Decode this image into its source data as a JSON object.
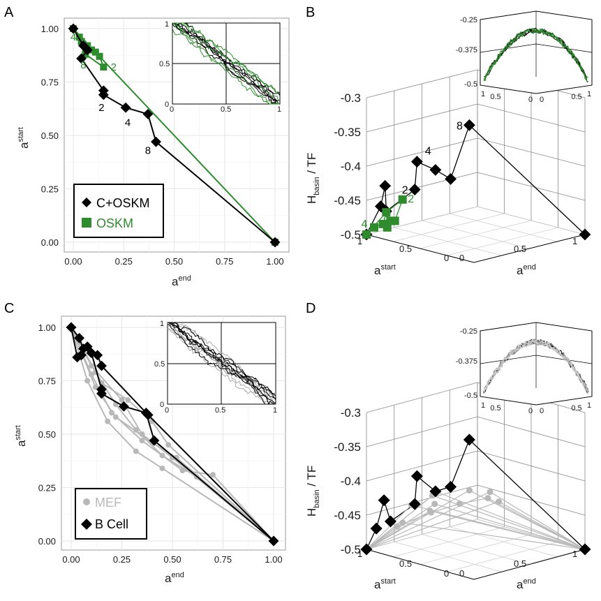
{
  "panels": {
    "A": {
      "label": "A"
    },
    "B": {
      "label": "B"
    },
    "C": {
      "label": "C"
    },
    "D": {
      "label": "D"
    }
  },
  "colors": {
    "black_series": "#000000",
    "green_series": "#2e8b2e",
    "gray_series": "#b8b8b8",
    "grid": "#e6e6e6"
  },
  "chart_data": [
    {
      "panel": "A",
      "type": "line",
      "xlabel": "a",
      "xlabel_sup": "end",
      "ylabel": "a",
      "ylabel_sup": "start",
      "xlim": [
        0,
        1
      ],
      "ylim": [
        0,
        1
      ],
      "ticks": [
        "0.00",
        "0.25",
        "0.50",
        "0.75",
        "1.00"
      ],
      "tick_values": [
        0,
        0.25,
        0.5,
        0.75,
        1.0
      ],
      "legend": {
        "position": "bottom-left",
        "entries": [
          "C+OSKM",
          "OSKM"
        ]
      },
      "series": [
        {
          "name": "C+OSKM",
          "marker": "diamond",
          "x": [
            0.0,
            0.05,
            0.07,
            0.04,
            0.15,
            0.15,
            0.26,
            0.37,
            0.41,
            1.0
          ],
          "y": [
            1.0,
            0.92,
            0.9,
            0.86,
            0.71,
            0.69,
            0.63,
            0.6,
            0.47,
            0.0
          ]
        },
        {
          "name": "OSKM",
          "marker": "square",
          "x": [
            0.0,
            0.03,
            0.07,
            0.09,
            0.11,
            0.13,
            0.15,
            0.06,
            0.04,
            0.0,
            1.0
          ],
          "y": [
            1.0,
            0.96,
            0.92,
            0.9,
            0.89,
            0.87,
            0.82,
            0.88,
            0.94,
            1.0,
            0.0
          ]
        }
      ],
      "annotations": [
        {
          "text": "4",
          "x": 0.0,
          "y": 0.96,
          "series": "OSKM"
        },
        {
          "text": "2",
          "x": 0.2,
          "y": 0.82,
          "series": "OSKM"
        },
        {
          "text": "8",
          "x": 0.05,
          "y": 0.83,
          "series": "OSKM"
        },
        {
          "text": "2",
          "x": 0.14,
          "y": 0.63,
          "series": "C+OSKM"
        },
        {
          "text": "4",
          "x": 0.27,
          "y": 0.56,
          "series": "C+OSKM"
        },
        {
          "text": "8",
          "x": 0.37,
          "y": 0.43,
          "series": "C+OSKM"
        }
      ],
      "inset": {
        "xlim": [
          0,
          1
        ],
        "ylim": [
          0,
          1
        ],
        "xticks": [
          "0",
          "0.5",
          "1"
        ],
        "yticks": [
          "0",
          "0.5",
          "1"
        ],
        "series": [
          "black",
          "green"
        ]
      }
    },
    {
      "panel": "B",
      "type": "line3d",
      "zlabel": "H",
      "zlabel_sub": "basin",
      "zlabel_suffix": " / TF",
      "x_axis_label": "a",
      "x_axis_sup": "start",
      "y_axis_label": "a",
      "y_axis_sup": "end",
      "zticks": [
        "-0.3",
        "-0.35",
        "-0.4",
        "-0.45",
        "-0.5"
      ],
      "zlim": [
        -0.5,
        -0.3
      ],
      "start_ticks": [
        "1",
        "0.5",
        "0"
      ],
      "end_ticks": [
        "0",
        "0.5",
        "1"
      ],
      "series": [
        {
          "name": "C+OSKM",
          "a_start": [
            1.0,
            0.92,
            0.9,
            0.86,
            0.71,
            0.69,
            0.63,
            0.6,
            0.47,
            0.0
          ],
          "a_end": [
            0.0,
            0.05,
            0.07,
            0.04,
            0.15,
            0.15,
            0.26,
            0.37,
            0.41,
            1.0
          ],
          "h": [
            -0.5,
            -0.46,
            -0.43,
            -0.47,
            -0.44,
            -0.4,
            -0.41,
            -0.42,
            -0.345,
            -0.5
          ]
        },
        {
          "name": "OSKM",
          "a_start": [
            1.0,
            0.96,
            0.92,
            0.9,
            0.89,
            0.87,
            0.82,
            0.88,
            1.0
          ],
          "a_end": [
            0.0,
            0.03,
            0.07,
            0.09,
            0.11,
            0.13,
            0.15,
            0.06,
            0.0
          ],
          "h": [
            -0.5,
            -0.49,
            -0.485,
            -0.49,
            -0.48,
            -0.48,
            -0.45,
            -0.47,
            -0.5
          ]
        }
      ],
      "annotations": [
        {
          "text": "8",
          "series": "C+OSKM"
        },
        {
          "text": "2",
          "series": "C+OSKM"
        },
        {
          "text": "4",
          "series": "C+OSKM"
        },
        {
          "text": "4",
          "series": "OSKM"
        },
        {
          "text": "8",
          "series": "OSKM"
        },
        {
          "text": "2",
          "series": "OSKM"
        }
      ],
      "inset": {
        "zticks": [
          "-0.25",
          "-0.375",
          "-0.5"
        ],
        "xticks": [
          "1",
          "0.5",
          "0"
        ],
        "yticks": [
          "0",
          "0.5",
          "1"
        ]
      }
    },
    {
      "panel": "C",
      "type": "line",
      "xlabel": "a",
      "xlabel_sup": "end",
      "ylabel": "a",
      "ylabel_sup": "start",
      "xlim": [
        0,
        1
      ],
      "ylim": [
        0,
        1
      ],
      "ticks": [
        "0.00",
        "0.25",
        "0.50",
        "0.75",
        "1.00"
      ],
      "tick_values": [
        0,
        0.25,
        0.5,
        0.75,
        1.0
      ],
      "legend": {
        "position": "bottom-left",
        "entries": [
          "MEF",
          "B Cell"
        ]
      },
      "series": [
        {
          "name": "B Cell 1",
          "group": "B Cell",
          "marker": "diamond",
          "x": [
            0.0,
            0.04,
            0.06,
            0.1,
            0.15,
            0.15,
            0.26,
            0.37,
            0.41,
            1.0
          ],
          "y": [
            1.0,
            0.95,
            0.9,
            0.88,
            0.71,
            0.69,
            0.63,
            0.6,
            0.47,
            0.0
          ]
        },
        {
          "name": "B Cell 2",
          "group": "B Cell",
          "marker": "diamond",
          "x": [
            0.0,
            0.03,
            0.05,
            0.08,
            0.13,
            0.15,
            0.38,
            1.0
          ],
          "y": [
            1.0,
            0.86,
            0.87,
            0.91,
            0.87,
            0.82,
            0.59,
            0.0
          ]
        },
        {
          "name": "MEF 1",
          "group": "MEF",
          "marker": "circle",
          "x": [
            0.0,
            0.1,
            0.25,
            0.35,
            0.5,
            1.0
          ],
          "y": [
            1.0,
            0.82,
            0.66,
            0.5,
            0.39,
            0.0
          ]
        },
        {
          "name": "MEF 2",
          "group": "MEF",
          "marker": "circle",
          "x": [
            0.0,
            0.12,
            0.22,
            0.32,
            0.45,
            0.62,
            1.0
          ],
          "y": [
            1.0,
            0.79,
            0.64,
            0.52,
            0.4,
            0.3,
            0.0
          ]
        },
        {
          "name": "MEF 3",
          "group": "MEF",
          "marker": "circle",
          "x": [
            0.0,
            0.1,
            0.2,
            0.35,
            0.55,
            0.7,
            1.0
          ],
          "y": [
            1.0,
            0.78,
            0.6,
            0.47,
            0.33,
            0.31,
            0.0
          ]
        },
        {
          "name": "MEF 4",
          "group": "MEF",
          "marker": "circle",
          "x": [
            0.0,
            0.15,
            0.28,
            0.4,
            0.48,
            1.0
          ],
          "y": [
            1.0,
            0.74,
            0.66,
            0.56,
            0.45,
            0.0
          ]
        },
        {
          "name": "MEF 5",
          "group": "MEF",
          "marker": "circle",
          "x": [
            0.0,
            0.08,
            0.18,
            0.32,
            0.45,
            1.0
          ],
          "y": [
            1.0,
            0.75,
            0.56,
            0.42,
            0.34,
            0.0
          ]
        },
        {
          "name": "MEF 6",
          "group": "MEF",
          "marker": "circle",
          "x": [
            0.0,
            0.12,
            0.22,
            0.4,
            0.52,
            1.0
          ],
          "y": [
            1.0,
            0.72,
            0.58,
            0.46,
            0.39,
            0.0
          ]
        }
      ],
      "inset": {
        "xlim": [
          0,
          1
        ],
        "ylim": [
          0,
          1
        ],
        "xticks": [
          "0",
          "0.5",
          "1"
        ],
        "yticks": [
          "0",
          "0.5",
          "1"
        ],
        "series": [
          "black",
          "gray"
        ]
      }
    },
    {
      "panel": "D",
      "type": "line3d",
      "zlabel": "H",
      "zlabel_sub": "basin",
      "zlabel_suffix": " / TF",
      "x_axis_label": "a",
      "x_axis_sup": "start",
      "y_axis_label": "a",
      "y_axis_sup": "end",
      "zticks": [
        "-0.3",
        "-0.35",
        "-0.4",
        "-0.45",
        "-0.5"
      ],
      "zlim": [
        -0.5,
        -0.3
      ],
      "start_ticks": [
        "1",
        "0.5",
        "0"
      ],
      "end_ticks": [
        "0",
        "0.5",
        "1"
      ],
      "series": [
        {
          "name": "B Cell",
          "group": "B Cell",
          "a_start": [
            1.0,
            0.95,
            0.9,
            0.88,
            0.71,
            0.69,
            0.63,
            0.6,
            0.47,
            0.0
          ],
          "a_end": [
            0.0,
            0.04,
            0.06,
            0.1,
            0.15,
            0.15,
            0.26,
            0.37,
            0.41,
            1.0
          ],
          "h": [
            -0.5,
            -0.47,
            -0.43,
            -0.46,
            -0.44,
            -0.4,
            -0.42,
            -0.41,
            -0.345,
            -0.5
          ]
        },
        {
          "name": "MEF",
          "group": "MEF",
          "a_start": [
            1.0,
            0.82,
            0.66,
            0.5,
            0.39,
            0.0
          ],
          "a_end": [
            0.0,
            0.1,
            0.25,
            0.35,
            0.5,
            1.0
          ],
          "h": [
            -0.5,
            -0.47,
            -0.45,
            -0.44,
            -0.43,
            -0.5
          ]
        }
      ],
      "inset": {
        "zticks": [
          "-0.25",
          "-0.375",
          "-0.5"
        ],
        "xticks": [
          "1",
          "0.5",
          "0"
        ],
        "yticks": [
          "0",
          "0.5",
          "1"
        ]
      }
    }
  ]
}
